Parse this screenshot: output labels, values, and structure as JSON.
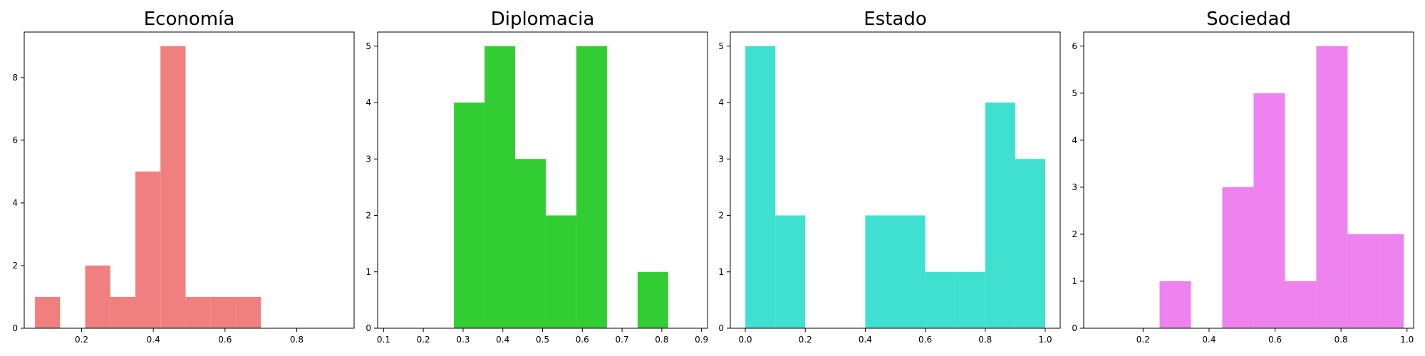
{
  "chart_data": [
    {
      "type": "bar",
      "title": "Economía",
      "color": "#f08080",
      "xlim": [
        0.04,
        0.96
      ],
      "ylim": [
        0,
        9.45
      ],
      "xticks": [
        0.2,
        0.4,
        0.6,
        0.8
      ],
      "yticks": [
        0,
        2,
        4,
        6,
        8
      ],
      "bin_edges": [
        0.07,
        0.14,
        0.21,
        0.28,
        0.35,
        0.42,
        0.49,
        0.56,
        0.63,
        0.7,
        0.77
      ],
      "values": [
        1,
        0,
        2,
        1,
        5,
        9,
        1,
        1,
        1,
        0
      ]
    },
    {
      "type": "bar",
      "title": "Diplomacia",
      "color": "#32cd32",
      "xlim": [
        0.085,
        0.915
      ],
      "ylim": [
        0,
        5.25
      ],
      "xticks": [
        0.1,
        0.2,
        0.3,
        0.4,
        0.5,
        0.6,
        0.7,
        0.8,
        0.9
      ],
      "yticks": [
        0,
        1,
        2,
        3,
        4,
        5
      ],
      "bin_edges": [
        0.277,
        0.354,
        0.431,
        0.508,
        0.585,
        0.662,
        0.739,
        0.816
      ],
      "values": [
        4,
        5,
        3,
        2,
        5,
        0,
        1
      ]
    },
    {
      "type": "bar",
      "title": "Estado",
      "color": "#40e0d0",
      "xlim": [
        -0.05,
        1.05
      ],
      "ylim": [
        0,
        5.25
      ],
      "xticks": [
        0.0,
        0.2,
        0.4,
        0.6,
        0.8,
        1.0
      ],
      "yticks": [
        0,
        1,
        2,
        3,
        4,
        5
      ],
      "bin_edges": [
        0.0,
        0.1,
        0.2,
        0.3,
        0.4,
        0.5,
        0.6,
        0.7,
        0.8,
        0.9,
        1.0
      ],
      "values": [
        5,
        2,
        0,
        0,
        2,
        2,
        1,
        1,
        4,
        3
      ]
    },
    {
      "type": "bar",
      "title": "Sociedad",
      "color": "#ee82ee",
      "xlim": [
        0.02,
        1.02
      ],
      "ylim": [
        0,
        6.3
      ],
      "xticks": [
        0.2,
        0.4,
        0.6,
        0.8,
        1.0
      ],
      "yticks": [
        0,
        1,
        2,
        3,
        4,
        5,
        6
      ],
      "bin_edges": [
        0.25,
        0.345,
        0.44,
        0.535,
        0.63,
        0.725,
        0.82,
        0.915,
        0.99
      ],
      "values": [
        1,
        0,
        3,
        5,
        1,
        6,
        2,
        2
      ]
    }
  ]
}
